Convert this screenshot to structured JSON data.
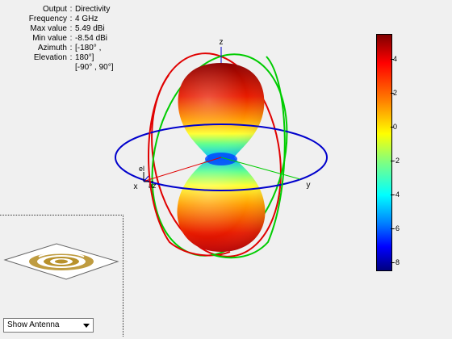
{
  "info": {
    "rows": [
      {
        "label": "Output",
        "value": "Directivity"
      },
      {
        "label": "Frequency",
        "value": "4 GHz"
      },
      {
        "label": "Max value",
        "value": "5.49 dBi"
      },
      {
        "label": "Min value",
        "value": "-8.54 dBi"
      },
      {
        "label": "Azimuth",
        "value": "[-180° ,"
      },
      {
        "label": "Elevation",
        "value": "180°]"
      },
      {
        "label": "",
        "value": "[-90° , 90°]"
      }
    ]
  },
  "axes": {
    "x": "x",
    "y": "y",
    "z": "z",
    "el": "el",
    "az": "az"
  },
  "colorbar": {
    "ticks": [
      "4",
      "2",
      "0",
      "-2",
      "-4",
      "-6",
      "-8"
    ],
    "max": 5.49,
    "min": -8.54
  },
  "controls": {
    "show_antenna": "Show Antenna"
  },
  "colors": {
    "red_circle": "#e00000",
    "green_circle": "#00cc00",
    "blue_circle": "#0000cc"
  }
}
